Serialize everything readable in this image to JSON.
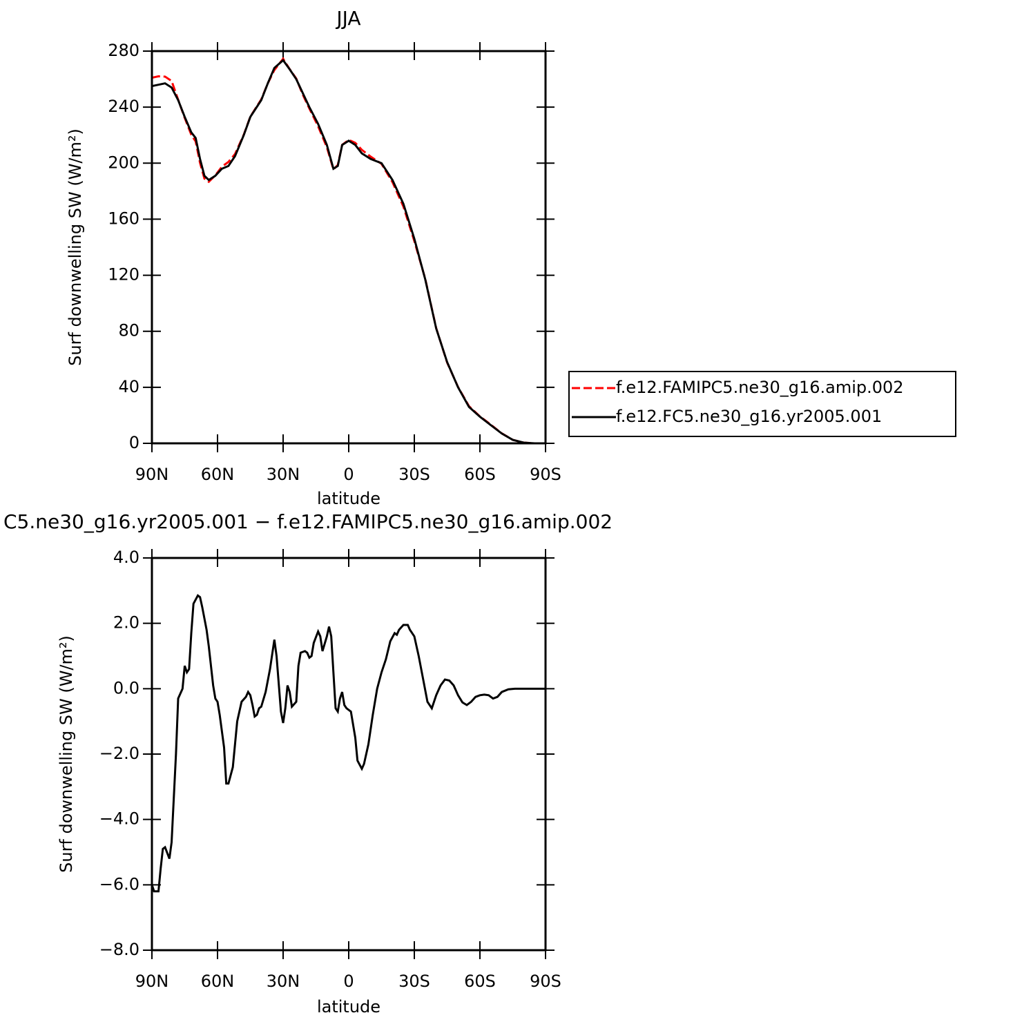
{
  "chart_data": [
    {
      "type": "line",
      "title": "JJA",
      "xlabel": "latitude",
      "ylabel": "Surf downwelling SW (W/m²)",
      "x": [
        90,
        87,
        84,
        81,
        78,
        75,
        72,
        70,
        68,
        66,
        64,
        61,
        58,
        55,
        52,
        48,
        45,
        40,
        37,
        34,
        30,
        27,
        24,
        21,
        18,
        14,
        10,
        7,
        5,
        3,
        0,
        -3,
        -6,
        -10,
        -15,
        -20,
        -25,
        -30,
        -35,
        -40,
        -45,
        -50,
        -55,
        -60,
        -65,
        -70,
        -75,
        -80,
        -85,
        -90
      ],
      "series": [
        {
          "name": "f.e12.FAMIPC5.ne30_g16.amip.002",
          "color": "#ff0000",
          "style": "dashed",
          "values": [
            261,
            262,
            261.8,
            258.7,
            245.3,
            232.3,
            220.3,
            215.5,
            200.2,
            189,
            186.7,
            191.3,
            197.5,
            200.9,
            206.5,
            220.3,
            233.2,
            245.5,
            257,
            266.5,
            274.5,
            267.1,
            260.4,
            248.9,
            239,
            226.3,
            211.4,
            195.5,
            198.7,
            213.1,
            216.6,
            214.5,
            209.5,
            204.7,
            199.5,
            186.5,
            169,
            144.4,
            117.4,
            82.2,
            57.7,
            40.2,
            26.5,
            19.2,
            13.3,
            7.1,
            2.5,
            0.5,
            0,
            0
          ]
        },
        {
          "name": "f.e12.FC5.ne30_g16.yr2005.001",
          "color": "#000000",
          "style": "solid",
          "values": [
            255,
            256,
            257,
            254,
            245,
            233,
            222,
            218,
            203,
            191,
            188,
            191,
            196,
            198,
            205,
            220,
            233,
            245,
            257,
            268,
            273.5,
            267,
            260,
            250,
            240,
            228,
            213,
            196,
            198,
            213,
            216,
            213,
            207,
            203,
            200,
            188,
            171,
            146,
            117,
            82,
            58,
            40,
            26,
            19,
            13,
            7,
            2.5,
            0.5,
            0,
            0
          ]
        }
      ],
      "xlim": [
        90,
        -90
      ],
      "xticks": [
        {
          "value": 90,
          "label": "90N"
        },
        {
          "value": 60,
          "label": "60N"
        },
        {
          "value": 30,
          "label": "30N"
        },
        0,
        {
          "value": -30,
          "label": "30S"
        },
        {
          "value": -60,
          "label": "60S"
        },
        {
          "value": -90,
          "label": "90S"
        }
      ],
      "ylim": [
        0,
        280
      ],
      "yticks": [
        0,
        40,
        80,
        120,
        160,
        200,
        240,
        280
      ],
      "legend": "right"
    },
    {
      "type": "line",
      "title": "C5.ne30_g16.yr2005.001 − f.e12.FAMIPC5.ne30_g16.amip.002",
      "xlabel": "latitude",
      "ylabel": "Surf downwelling SW (W/m²)",
      "color": "#000000",
      "x": [
        90,
        89,
        87,
        86,
        85,
        84,
        82,
        81,
        79,
        78,
        76,
        75,
        74,
        73,
        72,
        71,
        69,
        68,
        67,
        65,
        64,
        62,
        61,
        60,
        59,
        57,
        56,
        55,
        53,
        51,
        49,
        47,
        46,
        45,
        44,
        43,
        42,
        41,
        40,
        38,
        36,
        34,
        33,
        31,
        30,
        29,
        28,
        27,
        26,
        24,
        23,
        22,
        20,
        19,
        18,
        17,
        16,
        14,
        13,
        12,
        10,
        9,
        8,
        7,
        6,
        5,
        4,
        3,
        2,
        1,
        -1,
        -3,
        -4,
        -6,
        -7,
        -9,
        -11,
        -13,
        -15,
        -17,
        -19,
        -21,
        -22,
        -23,
        -25,
        -27,
        -28,
        -30,
        -32,
        -34,
        -36,
        -38,
        -40,
        -42,
        -44,
        -46,
        -48,
        -50,
        -52,
        -54,
        -56,
        -58,
        -60,
        -62,
        -64,
        -66,
        -68,
        -70,
        -73,
        -76,
        -80,
        -90
      ],
      "values": [
        -6.0,
        -6.2,
        -6.2,
        -5.5,
        -4.9,
        -4.85,
        -5.2,
        -4.7,
        -2.0,
        -0.3,
        0.0,
        0.7,
        0.5,
        0.6,
        1.7,
        2.6,
        2.85,
        2.8,
        2.5,
        1.8,
        1.3,
        0.1,
        -0.3,
        -0.4,
        -0.8,
        -1.8,
        -2.9,
        -2.9,
        -2.4,
        -1.0,
        -0.4,
        -0.25,
        -0.1,
        -0.2,
        -0.5,
        -0.85,
        -0.8,
        -0.6,
        -0.55,
        -0.1,
        0.6,
        1.5,
        1.0,
        -0.7,
        -1.05,
        -0.6,
        0.1,
        -0.1,
        -0.55,
        -0.4,
        0.7,
        1.1,
        1.15,
        1.1,
        0.95,
        1.0,
        1.4,
        1.75,
        1.6,
        1.15,
        1.6,
        1.9,
        1.6,
        0.5,
        -0.6,
        -0.7,
        -0.3,
        -0.1,
        -0.5,
        -0.6,
        -0.7,
        -1.5,
        -2.2,
        -2.45,
        -2.3,
        -1.7,
        -0.8,
        0.0,
        0.5,
        0.9,
        1.45,
        1.7,
        1.65,
        1.8,
        1.95,
        1.95,
        1.8,
        1.6,
        1.0,
        0.3,
        -0.4,
        -0.6,
        -0.2,
        0.1,
        0.28,
        0.25,
        0.1,
        -0.2,
        -0.42,
        -0.5,
        -0.4,
        -0.25,
        -0.2,
        -0.18,
        -0.2,
        -0.3,
        -0.25,
        -0.1,
        -0.02,
        0,
        0,
        0
      ],
      "xlim": [
        90,
        -90
      ],
      "xticks": [
        {
          "value": 90,
          "label": "90N"
        },
        {
          "value": 60,
          "label": "60N"
        },
        {
          "value": 30,
          "label": "30N"
        },
        0,
        {
          "value": -30,
          "label": "30S"
        },
        {
          "value": -60,
          "label": "60S"
        },
        {
          "value": -90,
          "label": "90S"
        }
      ],
      "ylim": [
        -8,
        4
      ],
      "yticks": [
        {
          "value": -8,
          "label": "−8.0"
        },
        {
          "value": -6,
          "label": "−6.0"
        },
        {
          "value": -4,
          "label": "−4.0"
        },
        {
          "value": -2,
          "label": "−2.0"
        },
        {
          "value": 0,
          "label": "0.0"
        },
        {
          "value": 2,
          "label": "2.0"
        },
        {
          "value": 4,
          "label": "4.0"
        }
      ]
    }
  ]
}
